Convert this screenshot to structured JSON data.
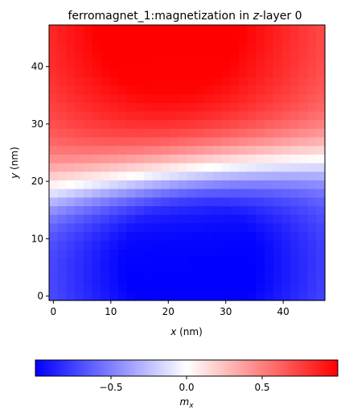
{
  "chart_data": {
    "type": "heatmap",
    "title_prefix": "ferromagnet_1:magnetization in ",
    "title_var": "z",
    "title_suffix": "-layer 0",
    "xlabel_var": "x",
    "xlabel_unit": " (nm)",
    "ylabel_var": "y",
    "ylabel_unit": " (nm)",
    "xlim": [
      -0.75,
      47.25
    ],
    "ylim": [
      -0.75,
      47.25
    ],
    "grid_step": 1.5,
    "grid_size": 32,
    "x_ticks": [
      "0",
      "10",
      "20",
      "30",
      "40"
    ],
    "x_tick_values": [
      0,
      10,
      20,
      30,
      40
    ],
    "y_ticks": [
      "0",
      "10",
      "20",
      "30",
      "40"
    ],
    "y_tick_values": [
      0,
      10,
      20,
      30,
      40
    ],
    "field_model": {
      "description": "m_x = tanh((y - boundary(x)) / width); boundary(x)= b0 + b1*x, shaped with curvature",
      "boundary_intercept": 19.5,
      "boundary_slope": 0.12,
      "curvature": 0.0,
      "width": 5.5,
      "top_saturation_center_x": 20,
      "bottom_saturation_center_x": 24
    },
    "colorbar": {
      "label_var": "m",
      "label_sub": "x",
      "range": [
        -1,
        1
      ],
      "ticks": [
        "−0.5",
        "0.0",
        "0.5"
      ],
      "tick_values": [
        -0.5,
        0.0,
        0.5
      ],
      "colormap": "bwr"
    }
  }
}
